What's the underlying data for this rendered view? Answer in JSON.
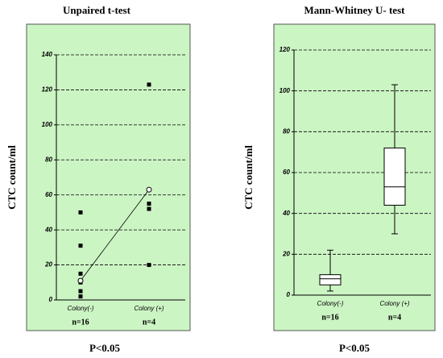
{
  "chart_data": [
    {
      "type": "dot",
      "title": "Unpaired t-test",
      "ylabel": "CTC count/ml",
      "categories": [
        "Colony(-)",
        "Colony (+)"
      ],
      "n_labels": [
        "n=16",
        "n=4"
      ],
      "footer": "P<0.05",
      "points": [
        [
          50,
          31,
          15,
          10,
          5,
          2
        ],
        [
          123,
          55,
          52,
          20
        ]
      ],
      "means": [
        11,
        63
      ],
      "ylim": [
        0,
        140
      ],
      "yticks": [
        0,
        20,
        40,
        60,
        80,
        100,
        120,
        140
      ],
      "grid": true,
      "background": "#ccf5c4"
    },
    {
      "type": "box",
      "title": "Mann-Whitney U- test",
      "ylabel": "CTC count/ml",
      "categories": [
        "Colony(-)",
        "Colony (+)"
      ],
      "n_labels": [
        "n=16",
        "n=4"
      ],
      "footer": "P<0.05",
      "boxes": [
        {
          "min": 2,
          "q1": 5,
          "median": 8,
          "q3": 10,
          "max": 22
        },
        {
          "min": 30,
          "q1": 44,
          "median": 53,
          "q3": 72,
          "max": 103
        }
      ],
      "ylim": [
        0,
        120
      ],
      "yticks": [
        0,
        20,
        40,
        60,
        80,
        100,
        120
      ],
      "grid": true,
      "background": "#ccf5c4"
    }
  ]
}
